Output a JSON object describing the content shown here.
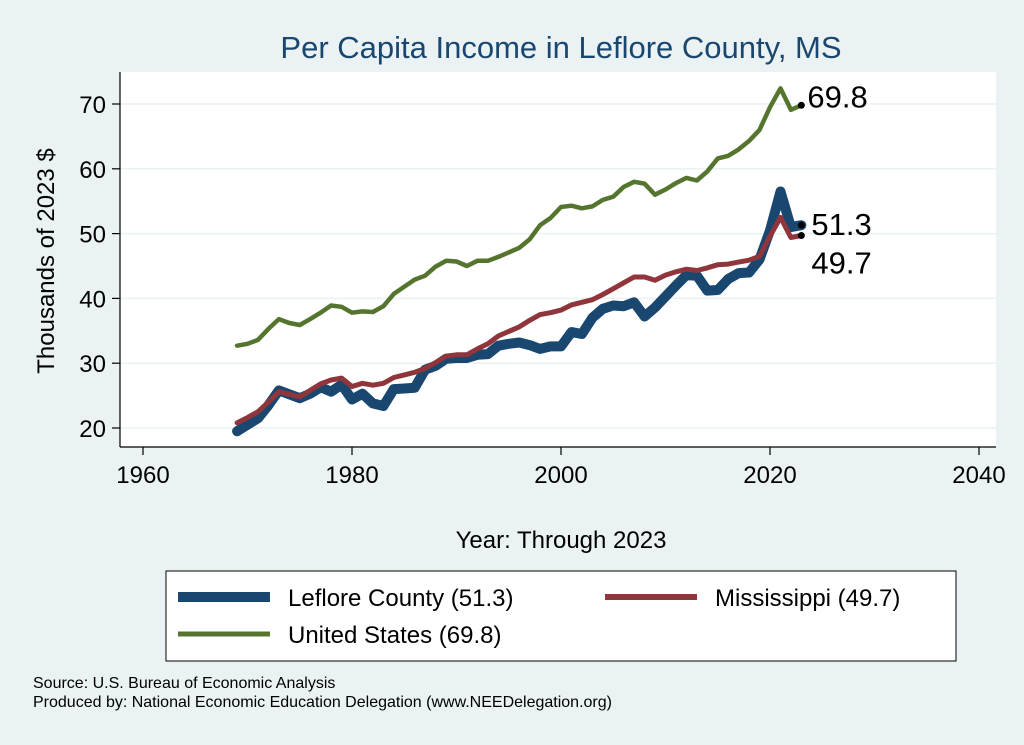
{
  "chart_data": {
    "type": "line",
    "title": "Per Capita Income in Leflore County, MS",
    "xlabel": "Year: Through 2023",
    "ylabel": "Thousands of 2023 $",
    "xlim": [
      1960,
      2040
    ],
    "ylim": [
      20,
      75
    ],
    "xticks": [
      1960,
      1980,
      2000,
      2020,
      2040
    ],
    "yticks": [
      20,
      30,
      40,
      50,
      60,
      70
    ],
    "grid": true,
    "legend_position": "bottom",
    "series": [
      {
        "name": "Leflore County (51.3)",
        "color": "#1a476f",
        "end_label": "51.3",
        "x": [
          1969,
          1970,
          1971,
          1972,
          1973,
          1974,
          1975,
          1976,
          1977,
          1978,
          1979,
          1980,
          1981,
          1982,
          1983,
          1984,
          1985,
          1986,
          1987,
          1988,
          1989,
          1990,
          1991,
          1992,
          1993,
          1994,
          1995,
          1996,
          1997,
          1998,
          1999,
          2000,
          2001,
          2002,
          2003,
          2004,
          2005,
          2006,
          2007,
          2008,
          2009,
          2010,
          2011,
          2012,
          2013,
          2014,
          2015,
          2016,
          2017,
          2018,
          2019,
          2020,
          2021,
          2022,
          2023
        ],
        "values": [
          19.5,
          20.5,
          21.5,
          23.5,
          25.8,
          25.2,
          24.6,
          25.3,
          26.3,
          25.6,
          26.7,
          24.4,
          25.3,
          23.8,
          23.4,
          26.0,
          26.1,
          26.2,
          29.0,
          29.6,
          30.7,
          30.8,
          30.8,
          31.3,
          31.4,
          32.7,
          33.0,
          33.2,
          32.8,
          32.2,
          32.6,
          32.6,
          34.8,
          34.5,
          37.0,
          38.4,
          38.9,
          38.8,
          39.4,
          37.2,
          38.6,
          40.3,
          42.0,
          43.6,
          43.5,
          41.2,
          41.3,
          43.0,
          43.9,
          44.0,
          46.0,
          50.5,
          56.5,
          51.0,
          51.3
        ]
      },
      {
        "name": "Mississippi (49.7)",
        "color": "#90353b",
        "end_label": "49.7",
        "x": [
          1969,
          1970,
          1971,
          1972,
          1973,
          1974,
          1975,
          1976,
          1977,
          1978,
          1979,
          1980,
          1981,
          1982,
          1983,
          1984,
          1985,
          1986,
          1987,
          1988,
          1989,
          1990,
          1991,
          1992,
          1993,
          1994,
          1995,
          1996,
          1997,
          1998,
          1999,
          2000,
          2001,
          2002,
          2003,
          2004,
          2005,
          2006,
          2007,
          2008,
          2009,
          2010,
          2011,
          2012,
          2013,
          2014,
          2015,
          2016,
          2017,
          2018,
          2019,
          2020,
          2021,
          2022,
          2023
        ],
        "values": [
          20.8,
          21.6,
          22.5,
          24.0,
          25.6,
          25.2,
          24.8,
          25.8,
          26.8,
          27.4,
          27.7,
          26.4,
          26.9,
          26.6,
          26.9,
          27.8,
          28.2,
          28.6,
          29.2,
          30.1,
          31.1,
          31.3,
          31.3,
          32.2,
          33.0,
          34.2,
          34.9,
          35.6,
          36.6,
          37.5,
          37.8,
          38.2,
          39.0,
          39.4,
          39.8,
          40.6,
          41.5,
          42.4,
          43.3,
          43.3,
          42.8,
          43.6,
          44.1,
          44.5,
          44.3,
          44.7,
          45.2,
          45.3,
          45.6,
          45.9,
          46.5,
          49.6,
          52.5,
          49.4,
          49.7
        ]
      },
      {
        "name": "United States (69.8)",
        "color": "#55752f",
        "end_label": "69.8",
        "x": [
          1969,
          1970,
          1971,
          1972,
          1973,
          1974,
          1975,
          1976,
          1977,
          1978,
          1979,
          1980,
          1981,
          1982,
          1983,
          1984,
          1985,
          1986,
          1987,
          1988,
          1989,
          1990,
          1991,
          1992,
          1993,
          1994,
          1995,
          1996,
          1997,
          1998,
          1999,
          2000,
          2001,
          2002,
          2003,
          2004,
          2005,
          2006,
          2007,
          2008,
          2009,
          2010,
          2011,
          2012,
          2013,
          2014,
          2015,
          2016,
          2017,
          2018,
          2019,
          2020,
          2021,
          2022,
          2023
        ],
        "values": [
          32.7,
          33.0,
          33.6,
          35.3,
          36.8,
          36.2,
          35.9,
          36.8,
          37.8,
          38.9,
          38.7,
          37.8,
          38.0,
          37.9,
          38.8,
          40.7,
          41.8,
          42.9,
          43.5,
          44.9,
          45.8,
          45.7,
          45.0,
          45.8,
          45.8,
          46.4,
          47.1,
          47.8,
          49.1,
          51.3,
          52.4,
          54.1,
          54.3,
          53.9,
          54.2,
          55.2,
          55.7,
          57.2,
          58.0,
          57.7,
          56.0,
          56.8,
          57.8,
          58.6,
          58.2,
          59.6,
          61.6,
          62.0,
          63.0,
          64.3,
          66.0,
          69.5,
          72.4,
          69.1,
          69.8
        ]
      }
    ]
  },
  "footer": {
    "source": "Source: U.S. Bureau of Economic Analysis",
    "produced_by": "Produced by: National Economic Education Delegation (www.NEEDelegation.org)"
  }
}
